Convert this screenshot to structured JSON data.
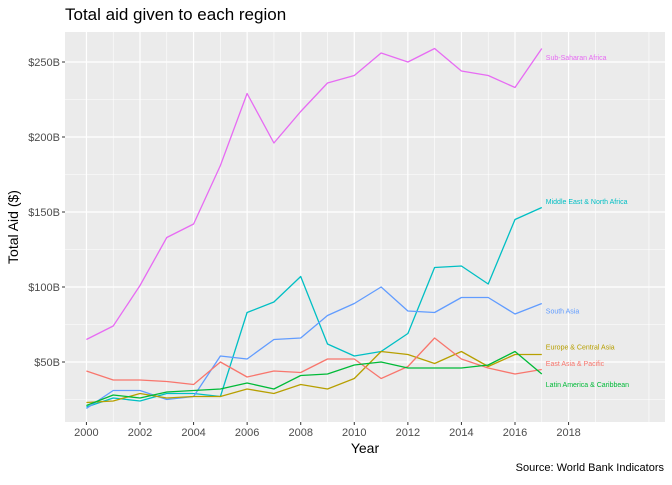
{
  "chart_data": {
    "type": "line",
    "title": "Total aid given to each region",
    "xlabel": "Year",
    "ylabel": "Total Aid ($)",
    "caption": "Source: World Bank Indicators",
    "x": [
      2000,
      2001,
      2002,
      2003,
      2004,
      2005,
      2006,
      2007,
      2008,
      2009,
      2010,
      2011,
      2012,
      2013,
      2014,
      2015,
      2016,
      2017
    ],
    "xlim": [
      1999.2,
      2021.6
    ],
    "ylim": [
      10,
      270
    ],
    "xticks": [
      2000,
      2002,
      2004,
      2006,
      2008,
      2010,
      2012,
      2014,
      2016,
      2018
    ],
    "xtick_labels": [
      "2000",
      "2002",
      "2004",
      "2006",
      "2008",
      "2010",
      "2012",
      "2014",
      "2016",
      "2018"
    ],
    "yticks": [
      50,
      100,
      150,
      200,
      250
    ],
    "ytick_labels": [
      "$50B",
      "$100B",
      "$150B",
      "$200B",
      "$250B"
    ],
    "grid": true,
    "legend": "none (series labeled directly at line ends)",
    "series": [
      {
        "name": "Sub-Saharan Africa",
        "color": "#e76bf3",
        "label_y": 253,
        "values": [
          65,
          74,
          101,
          133,
          142,
          181,
          229,
          196,
          217,
          236,
          241,
          256,
          250,
          259,
          244,
          241,
          233,
          259
        ]
      },
      {
        "name": "Middle East & North Africa",
        "color": "#00bfc4",
        "label_y": 157,
        "values": [
          20,
          26,
          24,
          29,
          29,
          27,
          83,
          90,
          107,
          62,
          54,
          57,
          69,
          113,
          114,
          102,
          145,
          153
        ]
      },
      {
        "name": "South Asia",
        "color": "#619cff",
        "label_y": 84,
        "values": [
          19,
          31,
          31,
          25,
          27,
          54,
          52,
          65,
          66,
          81,
          89,
          100,
          84,
          83,
          93,
          93,
          82,
          89
        ]
      },
      {
        "name": "Europe & Central Asia",
        "color": "#b79f00",
        "label_y": 60,
        "values": [
          23,
          24,
          29,
          26,
          27,
          27,
          32,
          29,
          35,
          32,
          39,
          57,
          55,
          49,
          57,
          47,
          55,
          55
        ]
      },
      {
        "name": "East Asia & Pacific",
        "color": "#f8766d",
        "label_y": 49,
        "values": [
          44,
          38,
          38,
          37,
          35,
          50,
          40,
          44,
          43,
          52,
          52,
          39,
          47,
          66,
          52,
          46,
          42,
          45
        ]
      },
      {
        "name": "Latin America & Caribbean",
        "color": "#00ba38",
        "label_y": 35,
        "values": [
          21,
          28,
          26,
          30,
          31,
          32,
          36,
          32,
          41,
          42,
          48,
          50,
          46,
          46,
          46,
          48,
          57,
          42
        ]
      }
    ]
  },
  "colors": {
    "panel_background": "#ebebeb",
    "grid_major": "#ffffff",
    "axis_text": "#4d4d4d",
    "title_text": "#000000"
  }
}
